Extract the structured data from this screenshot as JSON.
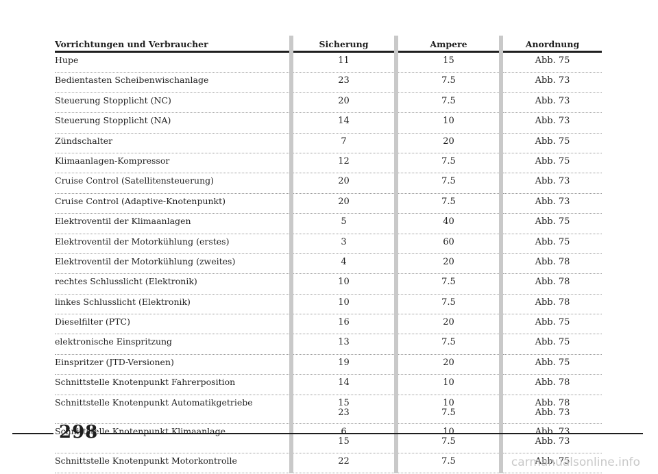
{
  "table": {
    "headers": {
      "device": "Vorrichtungen und Verbraucher",
      "fuse": "Sicherung",
      "ampere": "Ampere",
      "position": "Anordnung"
    },
    "rows": [
      {
        "device": "Hupe",
        "fuse": [
          "11"
        ],
        "ampere": [
          "15"
        ],
        "position": [
          "Abb. 75"
        ]
      },
      {
        "device": "Bedientasten Scheibenwischanlage",
        "fuse": [
          "23"
        ],
        "ampere": [
          "7.5"
        ],
        "position": [
          "Abb. 73"
        ]
      },
      {
        "device": "Steuerung Stopplicht (NC)",
        "fuse": [
          "20"
        ],
        "ampere": [
          "7.5"
        ],
        "position": [
          "Abb. 73"
        ]
      },
      {
        "device": "Steuerung Stopplicht (NA)",
        "fuse": [
          "14"
        ],
        "ampere": [
          "10"
        ],
        "position": [
          "Abb. 73"
        ]
      },
      {
        "device": "Zündschalter",
        "fuse": [
          "7"
        ],
        "ampere": [
          "20"
        ],
        "position": [
          "Abb. 75"
        ]
      },
      {
        "device": "Klimaanlagen-Kompressor",
        "fuse": [
          "12"
        ],
        "ampere": [
          "7.5"
        ],
        "position": [
          "Abb. 75"
        ]
      },
      {
        "device": "Cruise Control (Satellitensteuerung)",
        "fuse": [
          "20"
        ],
        "ampere": [
          "7.5"
        ],
        "position": [
          "Abb. 73"
        ]
      },
      {
        "device": "Cruise Control (Adaptive-Knotenpunkt)",
        "fuse": [
          "20"
        ],
        "ampere": [
          "7.5"
        ],
        "position": [
          "Abb. 73"
        ]
      },
      {
        "device": "Elektroventil der Klimaanlagen",
        "fuse": [
          "5"
        ],
        "ampere": [
          "40"
        ],
        "position": [
          "Abb. 75"
        ]
      },
      {
        "device": "Elektroventil der Motorkühlung (erstes)",
        "fuse": [
          "3"
        ],
        "ampere": [
          "60"
        ],
        "position": [
          "Abb. 75"
        ]
      },
      {
        "device": "Elektroventil der Motorkühlung (zweites)",
        "fuse": [
          "4"
        ],
        "ampere": [
          "20"
        ],
        "position": [
          "Abb. 78"
        ]
      },
      {
        "device": "rechtes Schlusslicht (Elektronik)",
        "fuse": [
          "10"
        ],
        "ampere": [
          "7.5"
        ],
        "position": [
          "Abb. 78"
        ]
      },
      {
        "device": "linkes Schlusslicht (Elektronik)",
        "fuse": [
          "10"
        ],
        "ampere": [
          "7.5"
        ],
        "position": [
          "Abb. 78"
        ]
      },
      {
        "device": "Dieselfilter (PTC)",
        "fuse": [
          "16"
        ],
        "ampere": [
          "20"
        ],
        "position": [
          "Abb. 75"
        ]
      },
      {
        "device": "elektronische Einspritzung",
        "fuse": [
          "13"
        ],
        "ampere": [
          "7.5"
        ],
        "position": [
          "Abb. 75"
        ]
      },
      {
        "device": "Einspritzer (JTD-Versionen)",
        "fuse": [
          "19"
        ],
        "ampere": [
          "20"
        ],
        "position": [
          "Abb. 75"
        ]
      },
      {
        "device": "Schnittstelle Knotenpunkt Fahrerposition",
        "fuse": [
          "14"
        ],
        "ampere": [
          "10"
        ],
        "position": [
          "Abb. 78"
        ]
      },
      {
        "device": "Schnittstelle Knotenpunkt Automatikgetriebe",
        "fuse": [
          "15",
          "23"
        ],
        "ampere": [
          "10",
          "7.5"
        ],
        "position": [
          "Abb. 78",
          "Abb. 73"
        ]
      },
      {
        "device": "Schnittstelle Knotenpunkt Klimaanlage",
        "fuse": [
          "6",
          "15"
        ],
        "ampere": [
          "10",
          "7.5"
        ],
        "position": [
          "Abb. 73",
          "Abb. 73"
        ]
      },
      {
        "device": "Schnittstelle Knotenpunkt Motorkontrolle",
        "fuse": [
          "22"
        ],
        "ampere": [
          "7.5"
        ],
        "position": [
          "Abb. 75"
        ]
      }
    ]
  },
  "footer": {
    "page_number": "298",
    "watermark": "carmanualsonline.info"
  }
}
